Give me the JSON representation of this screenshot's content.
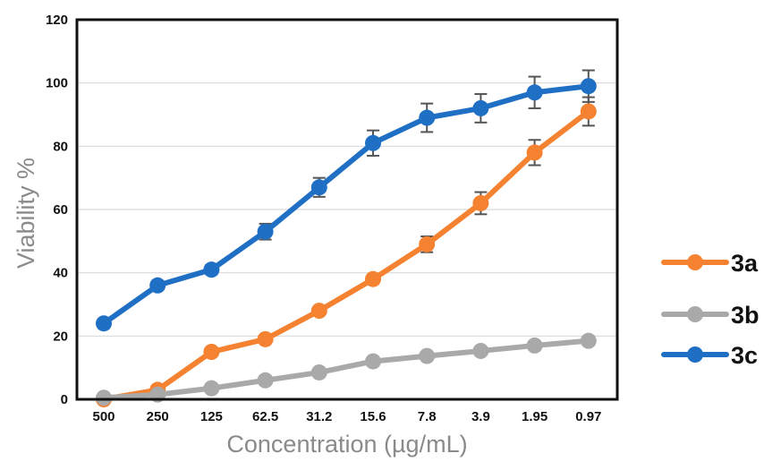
{
  "chart_data": {
    "type": "line",
    "title": "",
    "xlabel": "Concentration (µg/mL)",
    "ylabel": "Viability %",
    "categories": [
      "500",
      "250",
      "125",
      "62.5",
      "31.2",
      "15.6",
      "7.8",
      "3.9",
      "1.95",
      "0.97"
    ],
    "ylim": [
      0,
      120
    ],
    "yticks": [
      "0",
      "20",
      "40",
      "60",
      "80",
      "100",
      "120"
    ],
    "grid": true,
    "legend_position": "right",
    "series": [
      {
        "name": "3a",
        "color": "#F58230",
        "values": [
          0,
          3,
          15,
          19,
          28,
          38,
          49,
          62,
          78,
          91
        ],
        "errors": [
          0,
          0,
          0,
          0,
          0,
          0,
          2.5,
          3.5,
          4,
          4.5
        ]
      },
      {
        "name": "3b",
        "color": "#A9A9A9",
        "values": [
          0.5,
          1.5,
          3.5,
          6,
          8.5,
          12,
          13.7,
          15.3,
          17,
          18.5
        ],
        "errors": [
          0,
          0,
          0,
          0,
          0,
          0,
          0,
          0,
          0,
          0
        ]
      },
      {
        "name": "3c",
        "color": "#1F6FC5",
        "values": [
          24,
          36,
          41,
          53,
          67,
          81,
          89,
          92,
          97,
          99
        ],
        "errors": [
          0,
          0,
          1.5,
          2.5,
          3,
          4,
          4.5,
          4.5,
          5,
          5
        ]
      }
    ]
  }
}
